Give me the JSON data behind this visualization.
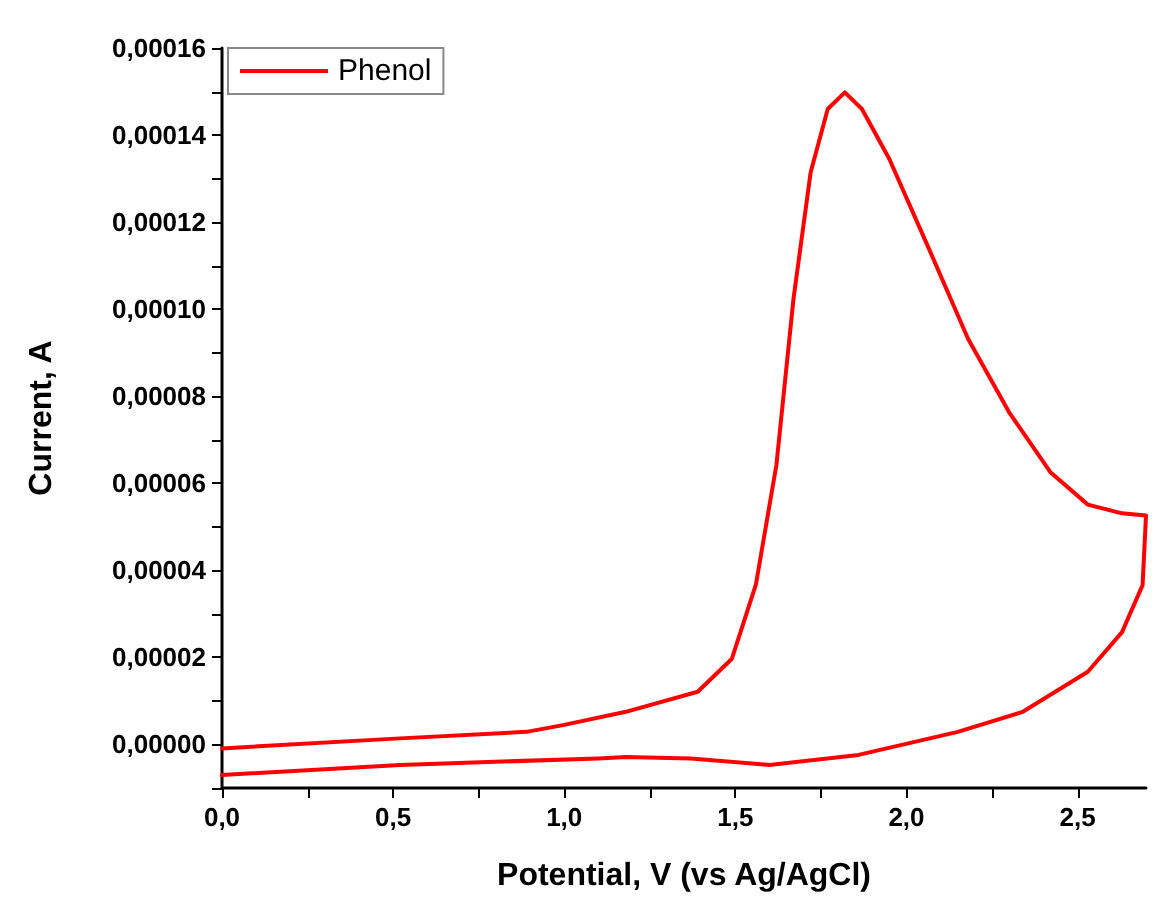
{
  "chart_data": {
    "type": "line",
    "xlabel": "Potential, V (vs Ag/AgCl)",
    "ylabel": "Current, A",
    "xlim": [
      0,
      2.7
    ],
    "ylim": [
      -1e-05,
      0.00016
    ],
    "xticks": [
      {
        "value": 0,
        "label": "0,0"
      },
      {
        "value": 0.25,
        "label": null
      },
      {
        "value": 0.5,
        "label": "0,5"
      },
      {
        "value": 0.75,
        "label": null
      },
      {
        "value": 1,
        "label": "1,0"
      },
      {
        "value": 1.25,
        "label": null
      },
      {
        "value": 1.5,
        "label": "1,5"
      },
      {
        "value": 1.75,
        "label": null
      },
      {
        "value": 2,
        "label": "2,0"
      },
      {
        "value": 2.25,
        "label": null
      },
      {
        "value": 2.5,
        "label": "2,5"
      }
    ],
    "yticks": [
      {
        "value": -1e-05,
        "label": null
      },
      {
        "value": 0,
        "label": "0,00000"
      },
      {
        "value": 1e-05,
        "label": null
      },
      {
        "value": 2e-05,
        "label": "0,00002"
      },
      {
        "value": 3e-05,
        "label": null
      },
      {
        "value": 4e-05,
        "label": "0,00004"
      },
      {
        "value": 5e-05,
        "label": null
      },
      {
        "value": 6e-05,
        "label": "0,00006"
      },
      {
        "value": 7e-05,
        "label": null
      },
      {
        "value": 8e-05,
        "label": "0,00008"
      },
      {
        "value": 9e-05,
        "label": null
      },
      {
        "value": 0.0001,
        "label": "0,00010"
      },
      {
        "value": 0.00011,
        "label": null
      },
      {
        "value": 0.00012,
        "label": "0,00012"
      },
      {
        "value": 0.00013,
        "label": null
      },
      {
        "value": 0.00014,
        "label": "0,00014"
      },
      {
        "value": 0.00015,
        "label": null
      },
      {
        "value": 0.00016,
        "label": "0,00016"
      }
    ],
    "grid": false,
    "legend": "top left",
    "marker": "none",
    "line_style": "solid",
    "series": [
      {
        "name": "Phenol",
        "color": "#ff0000",
        "x": [
          0,
          0.52,
          0.89,
          1.0,
          1.18,
          1.39,
          1.49,
          1.56,
          1.62,
          1.67,
          1.72,
          1.77,
          1.82,
          1.87,
          1.95,
          2.07,
          2.18,
          2.3,
          2.42,
          2.53,
          2.63,
          2.7,
          2.69,
          2.63,
          2.53,
          2.34,
          2.15,
          1.86,
          1.6,
          1.37,
          1.18,
          1.1,
          0.52,
          0
        ],
        "values": [
          -9e-07,
          1.4e-06,
          2.9e-06,
          4.5e-06,
          7.5e-06,
          1.21e-05,
          1.97e-05,
          3.67e-05,
          6.42e-05,
          0.0001024,
          0.0001314,
          0.000146,
          0.0001498,
          0.000146,
          0.0001345,
          0.0001131,
          9.32e-05,
          7.63e-05,
          6.26e-05,
          5.51e-05,
          5.31e-05,
          5.26e-05,
          3.66e-05,
          2.58e-05,
          1.67e-05,
          7.5e-06,
          2.9e-06,
          -2.4e-06,
          -4.7e-06,
          -3.2e-06,
          -2.9e-06,
          -3.2e-06,
          -4.7e-06,
          -7e-06
        ]
      }
    ]
  }
}
